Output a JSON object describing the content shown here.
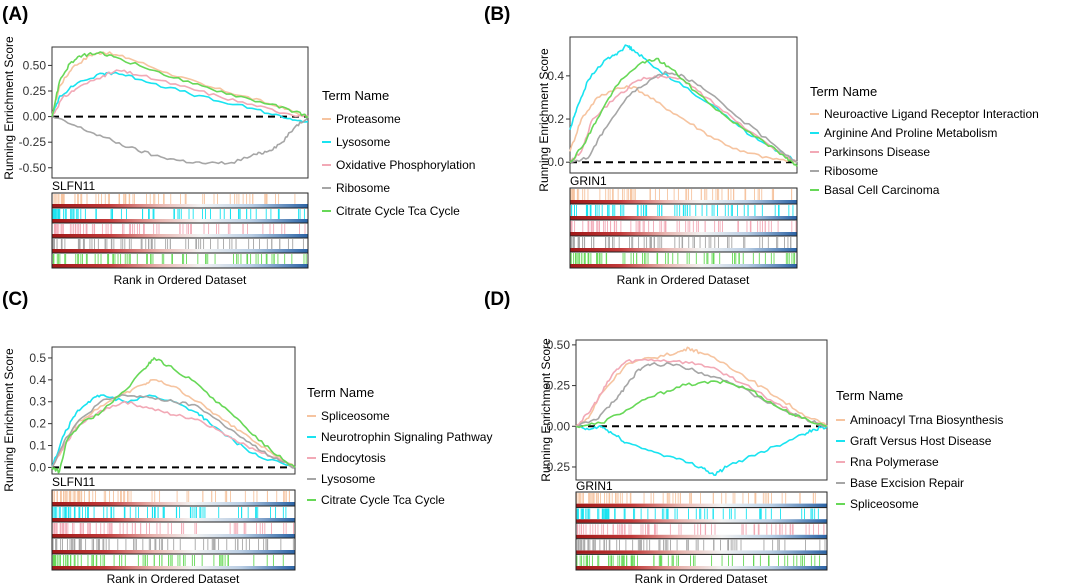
{
  "figure": {
    "xlabel": "Rank in Ordered Dataset",
    "ylabel": "Running Enrichment Score",
    "legend_title": "Term Name"
  },
  "colors": {
    "series": [
      "#f6c4a0",
      "#19e3f0",
      "#f2a9b6",
      "#a6a6a6",
      "#67d857"
    ],
    "heat_red": "#b31b1b",
    "heat_blue": "#2c64a6",
    "frame": "#333333"
  },
  "chart_data": [
    {
      "panel": "(A)",
      "type": "line",
      "gene": "SLFN11",
      "ylim": [
        -0.6,
        0.68
      ],
      "yticks": [
        "0.50",
        "0.25",
        "0.00",
        "-0.25",
        "-0.50"
      ],
      "ytick_values": [
        0.5,
        0.25,
        0.0,
        -0.25,
        -0.5
      ],
      "series": [
        {
          "name": "Proteasome",
          "points": [
            [
              0,
              0.0
            ],
            [
              0.03,
              0.3
            ],
            [
              0.08,
              0.48
            ],
            [
              0.15,
              0.6
            ],
            [
              0.2,
              0.63
            ],
            [
              0.3,
              0.57
            ],
            [
              0.45,
              0.43
            ],
            [
              0.6,
              0.3
            ],
            [
              0.75,
              0.2
            ],
            [
              0.88,
              0.1
            ],
            [
              1,
              0.0
            ]
          ]
        },
        {
          "name": "Lysosome",
          "points": [
            [
              0,
              0.0
            ],
            [
              0.03,
              0.2
            ],
            [
              0.1,
              0.33
            ],
            [
              0.2,
              0.42
            ],
            [
              0.25,
              0.43
            ],
            [
              0.35,
              0.36
            ],
            [
              0.5,
              0.25
            ],
            [
              0.65,
              0.15
            ],
            [
              0.8,
              0.07
            ],
            [
              0.92,
              -0.02
            ],
            [
              1,
              -0.05
            ]
          ]
        },
        {
          "name": "Oxidative Phosphorylation",
          "points": [
            [
              0,
              0.0
            ],
            [
              0.04,
              0.18
            ],
            [
              0.1,
              0.28
            ],
            [
              0.2,
              0.4
            ],
            [
              0.26,
              0.45
            ],
            [
              0.35,
              0.4
            ],
            [
              0.5,
              0.3
            ],
            [
              0.65,
              0.2
            ],
            [
              0.8,
              0.1
            ],
            [
              0.92,
              0.03
            ],
            [
              1,
              0.0
            ]
          ]
        },
        {
          "name": "Ribosome",
          "points": [
            [
              0,
              0.0
            ],
            [
              0.1,
              -0.1
            ],
            [
              0.2,
              -0.2
            ],
            [
              0.3,
              -0.3
            ],
            [
              0.4,
              -0.38
            ],
            [
              0.5,
              -0.43
            ],
            [
              0.6,
              -0.46
            ],
            [
              0.7,
              -0.45
            ],
            [
              0.8,
              -0.37
            ],
            [
              0.85,
              -0.33
            ],
            [
              0.9,
              -0.25
            ],
            [
              0.95,
              -0.1
            ],
            [
              1,
              0.0
            ]
          ]
        },
        {
          "name": "Citrate Cycle Tca Cycle",
          "points": [
            [
              0,
              0.0
            ],
            [
              0.03,
              0.35
            ],
            [
              0.07,
              0.52
            ],
            [
              0.12,
              0.6
            ],
            [
              0.18,
              0.62
            ],
            [
              0.25,
              0.58
            ],
            [
              0.4,
              0.45
            ],
            [
              0.55,
              0.32
            ],
            [
              0.7,
              0.22
            ],
            [
              0.85,
              0.12
            ],
            [
              0.95,
              0.05
            ],
            [
              1,
              0.0
            ]
          ]
        }
      ]
    },
    {
      "panel": "(B)",
      "type": "line",
      "gene": "GRIN1",
      "ylim": [
        -0.05,
        0.58
      ],
      "yticks": [
        "0.4",
        "0.2",
        "0.0"
      ],
      "ytick_values": [
        0.4,
        0.2,
        0.0
      ],
      "series": [
        {
          "name": "Neuroactive Ligand Receptor Interaction",
          "points": [
            [
              0,
              0.05
            ],
            [
              0.05,
              0.2
            ],
            [
              0.12,
              0.3
            ],
            [
              0.2,
              0.34
            ],
            [
              0.28,
              0.35
            ],
            [
              0.38,
              0.28
            ],
            [
              0.5,
              0.2
            ],
            [
              0.62,
              0.12
            ],
            [
              0.75,
              0.05
            ],
            [
              0.88,
              0.02
            ],
            [
              1,
              0.0
            ]
          ]
        },
        {
          "name": "Arginine And Proline Metabolism",
          "points": [
            [
              0,
              0.15
            ],
            [
              0.03,
              0.25
            ],
            [
              0.08,
              0.38
            ],
            [
              0.15,
              0.47
            ],
            [
              0.2,
              0.5
            ],
            [
              0.25,
              0.54
            ],
            [
              0.28,
              0.52
            ],
            [
              0.35,
              0.46
            ],
            [
              0.5,
              0.35
            ],
            [
              0.65,
              0.25
            ],
            [
              0.8,
              0.12
            ],
            [
              0.92,
              0.05
            ],
            [
              1,
              0.0
            ]
          ]
        },
        {
          "name": "Parkinsons Disease",
          "points": [
            [
              0,
              0.0
            ],
            [
              0.05,
              0.05
            ],
            [
              0.1,
              0.2
            ],
            [
              0.2,
              0.3
            ],
            [
              0.3,
              0.38
            ],
            [
              0.4,
              0.4
            ],
            [
              0.5,
              0.38
            ],
            [
              0.6,
              0.3
            ],
            [
              0.75,
              0.18
            ],
            [
              0.9,
              0.06
            ],
            [
              1,
              0.0
            ]
          ]
        },
        {
          "name": "Ribosome",
          "points": [
            [
              0,
              0.0
            ],
            [
              0.08,
              0.02
            ],
            [
              0.15,
              0.15
            ],
            [
              0.25,
              0.3
            ],
            [
              0.35,
              0.38
            ],
            [
              0.42,
              0.42
            ],
            [
              0.5,
              0.4
            ],
            [
              0.6,
              0.33
            ],
            [
              0.75,
              0.2
            ],
            [
              0.9,
              0.08
            ],
            [
              1,
              0.0
            ]
          ]
        },
        {
          "name": "Basal Cell Carcinoma",
          "points": [
            [
              0,
              0.0
            ],
            [
              0.06,
              0.08
            ],
            [
              0.12,
              0.2
            ],
            [
              0.2,
              0.35
            ],
            [
              0.3,
              0.45
            ],
            [
              0.38,
              0.48
            ],
            [
              0.45,
              0.43
            ],
            [
              0.55,
              0.33
            ],
            [
              0.7,
              0.2
            ],
            [
              0.85,
              0.1
            ],
            [
              0.95,
              0.02
            ],
            [
              1,
              -0.02
            ]
          ]
        }
      ]
    },
    {
      "panel": "(C)",
      "type": "line",
      "gene": "SLFN11",
      "ylim": [
        -0.03,
        0.55
      ],
      "yticks": [
        "0.5",
        "0.4",
        "0.3",
        "0.2",
        "0.1",
        "0.0"
      ],
      "ytick_values": [
        0.5,
        0.4,
        0.3,
        0.2,
        0.1,
        0.0
      ],
      "series": [
        {
          "name": "Spliceosome",
          "points": [
            [
              0,
              0.0
            ],
            [
              0.05,
              0.1
            ],
            [
              0.1,
              0.2
            ],
            [
              0.2,
              0.28
            ],
            [
              0.3,
              0.34
            ],
            [
              0.38,
              0.38
            ],
            [
              0.42,
              0.4
            ],
            [
              0.5,
              0.37
            ],
            [
              0.6,
              0.3
            ],
            [
              0.7,
              0.22
            ],
            [
              0.8,
              0.15
            ],
            [
              0.9,
              0.07
            ],
            [
              1,
              0.0
            ]
          ]
        },
        {
          "name": "Neurotrophin Signaling Pathway",
          "points": [
            [
              0,
              0.0
            ],
            [
              0.05,
              0.15
            ],
            [
              0.1,
              0.25
            ],
            [
              0.15,
              0.3
            ],
            [
              0.2,
              0.33
            ],
            [
              0.3,
              0.3
            ],
            [
              0.4,
              0.33
            ],
            [
              0.5,
              0.3
            ],
            [
              0.6,
              0.25
            ],
            [
              0.65,
              0.2
            ],
            [
              0.75,
              0.12
            ],
            [
              0.85,
              0.05
            ],
            [
              1,
              0.0
            ]
          ]
        },
        {
          "name": "Endocytosis",
          "points": [
            [
              0,
              0.0
            ],
            [
              0.05,
              0.1
            ],
            [
              0.1,
              0.18
            ],
            [
              0.2,
              0.26
            ],
            [
              0.3,
              0.3
            ],
            [
              0.4,
              0.27
            ],
            [
              0.5,
              0.24
            ],
            [
              0.6,
              0.22
            ],
            [
              0.7,
              0.16
            ],
            [
              0.8,
              0.1
            ],
            [
              0.9,
              0.05
            ],
            [
              1,
              0.0
            ]
          ]
        },
        {
          "name": "Lysosome",
          "points": [
            [
              0,
              0.0
            ],
            [
              0.05,
              0.12
            ],
            [
              0.1,
              0.2
            ],
            [
              0.2,
              0.3
            ],
            [
              0.3,
              0.33
            ],
            [
              0.4,
              0.32
            ],
            [
              0.5,
              0.3
            ],
            [
              0.6,
              0.28
            ],
            [
              0.7,
              0.2
            ],
            [
              0.8,
              0.12
            ],
            [
              0.9,
              0.05
            ],
            [
              1,
              0.0
            ]
          ]
        },
        {
          "name": "Citrate Cycle Tca Cycle",
          "points": [
            [
              0,
              0.0
            ],
            [
              0.03,
              -0.02
            ],
            [
              0.06,
              0.12
            ],
            [
              0.12,
              0.2
            ],
            [
              0.2,
              0.25
            ],
            [
              0.3,
              0.35
            ],
            [
              0.38,
              0.45
            ],
            [
              0.42,
              0.5
            ],
            [
              0.5,
              0.45
            ],
            [
              0.6,
              0.38
            ],
            [
              0.7,
              0.28
            ],
            [
              0.8,
              0.18
            ],
            [
              0.9,
              0.08
            ],
            [
              1,
              0.0
            ]
          ]
        }
      ]
    },
    {
      "panel": "(D)",
      "type": "line",
      "gene": "GRIN1",
      "ylim": [
        -0.33,
        0.53
      ],
      "yticks": [
        "0.50",
        "0.25",
        "0.00",
        "-0.25"
      ],
      "ytick_values": [
        0.5,
        0.25,
        0.0,
        -0.25
      ],
      "series": [
        {
          "name": "Aminoacyl Trna Biosynthesis",
          "points": [
            [
              0,
              0.0
            ],
            [
              0.05,
              0.05
            ],
            [
              0.1,
              0.2
            ],
            [
              0.2,
              0.38
            ],
            [
              0.3,
              0.42
            ],
            [
              0.4,
              0.45
            ],
            [
              0.45,
              0.48
            ],
            [
              0.5,
              0.45
            ],
            [
              0.6,
              0.38
            ],
            [
              0.7,
              0.28
            ],
            [
              0.8,
              0.18
            ],
            [
              0.9,
              0.08
            ],
            [
              1,
              0.0
            ]
          ]
        },
        {
          "name": "Graft Versus Host Disease",
          "points": [
            [
              0,
              0.0
            ],
            [
              0.05,
              -0.02
            ],
            [
              0.1,
              0.0
            ],
            [
              0.15,
              -0.05
            ],
            [
              0.2,
              -0.1
            ],
            [
              0.3,
              -0.15
            ],
            [
              0.4,
              -0.2
            ],
            [
              0.5,
              -0.25
            ],
            [
              0.55,
              -0.3
            ],
            [
              0.6,
              -0.25
            ],
            [
              0.7,
              -0.18
            ],
            [
              0.8,
              -0.12
            ],
            [
              0.9,
              -0.05
            ],
            [
              0.95,
              -0.02
            ],
            [
              1,
              0.0
            ]
          ]
        },
        {
          "name": "Rna Polymerase",
          "points": [
            [
              0,
              0.0
            ],
            [
              0.05,
              0.08
            ],
            [
              0.1,
              0.2
            ],
            [
              0.15,
              0.33
            ],
            [
              0.2,
              0.4
            ],
            [
              0.3,
              0.41
            ],
            [
              0.4,
              0.4
            ],
            [
              0.5,
              0.38
            ],
            [
              0.6,
              0.32
            ],
            [
              0.7,
              0.23
            ],
            [
              0.8,
              0.14
            ],
            [
              0.9,
              0.05
            ],
            [
              1,
              0.0
            ]
          ]
        },
        {
          "name": "Base Excision Repair",
          "points": [
            [
              0,
              0.0
            ],
            [
              0.08,
              0.04
            ],
            [
              0.15,
              0.15
            ],
            [
              0.2,
              0.25
            ],
            [
              0.25,
              0.35
            ],
            [
              0.3,
              0.38
            ],
            [
              0.4,
              0.38
            ],
            [
              0.5,
              0.33
            ],
            [
              0.6,
              0.28
            ],
            [
              0.7,
              0.2
            ],
            [
              0.8,
              0.12
            ],
            [
              0.9,
              0.05
            ],
            [
              1,
              0.0
            ]
          ]
        },
        {
          "name": "Spliceosome",
          "points": [
            [
              0,
              0.0
            ],
            [
              0.1,
              0.02
            ],
            [
              0.2,
              0.1
            ],
            [
              0.3,
              0.18
            ],
            [
              0.4,
              0.24
            ],
            [
              0.5,
              0.27
            ],
            [
              0.6,
              0.27
            ],
            [
              0.7,
              0.22
            ],
            [
              0.8,
              0.12
            ],
            [
              0.9,
              0.05
            ],
            [
              1,
              0.0
            ]
          ]
        }
      ]
    }
  ]
}
